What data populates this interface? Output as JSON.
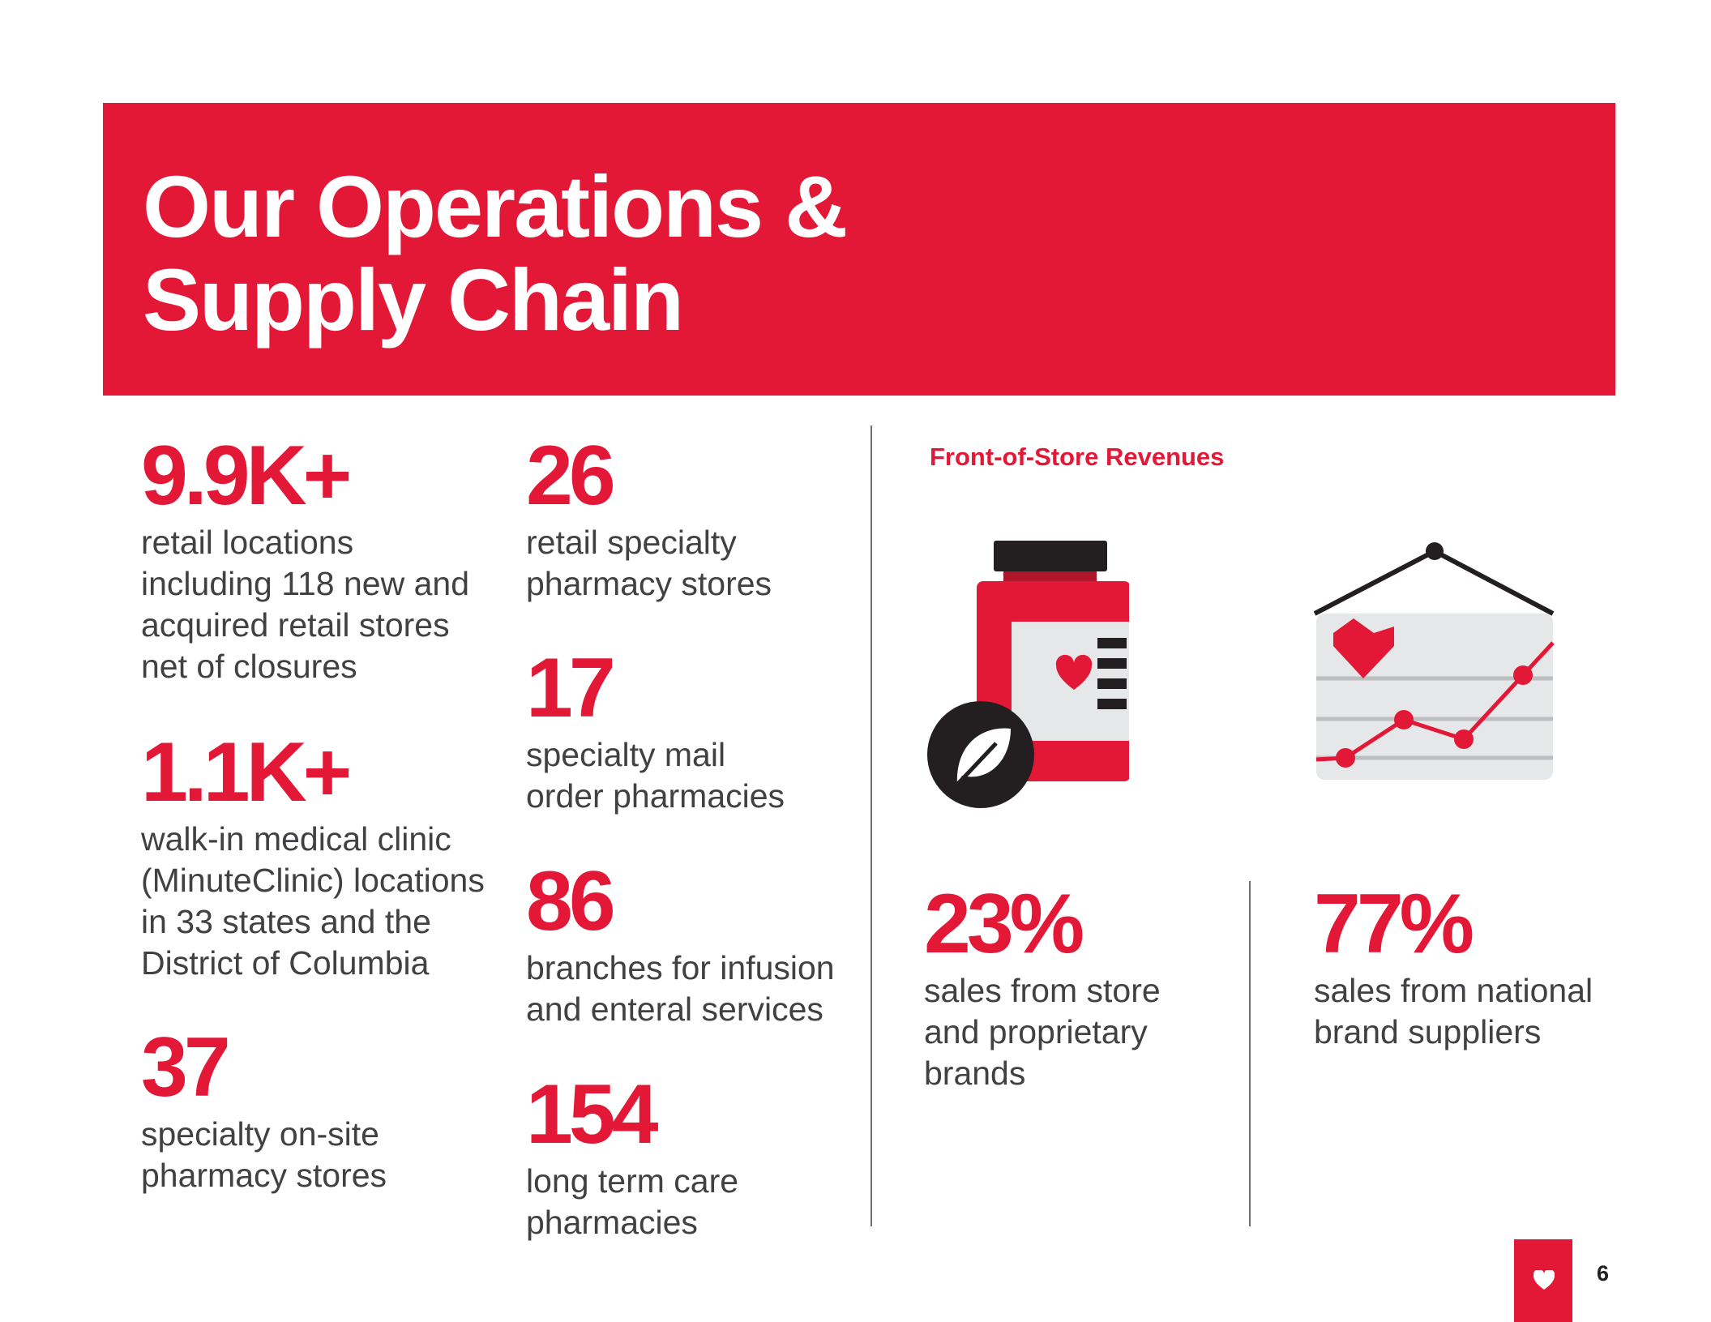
{
  "header": {
    "title_line1": "Our Operations &",
    "title_line2": "Supply Chain"
  },
  "stats_left": [
    {
      "number": "9.9K+",
      "description": "retail locations\nincluding 118 new and\nacquired retail stores\nnet of closures"
    },
    {
      "number": "1.1K+",
      "description": "walk-in medical clinic\n(MinuteClinic) locations\nin 33 states and the\nDistrict of Columbia"
    },
    {
      "number": "37",
      "description": "specialty on-site\npharmacy stores"
    }
  ],
  "stats_middle": [
    {
      "number": "26",
      "description": "retail specialty\npharmacy stores"
    },
    {
      "number": "17",
      "description": "specialty mail\norder pharmacies"
    },
    {
      "number": "86",
      "description": "branches for infusion\nand enteral services"
    },
    {
      "number": "154",
      "description": "long term care\npharmacies"
    }
  ],
  "front_of_store": {
    "title": "Front-of-Store Revenues",
    "icons": [
      "pill-bottle-leaf-icon",
      "hanging-sign-chart-icon"
    ],
    "stats": [
      {
        "number": "23%",
        "description": "sales from store\nand proprietary\nbrands"
      },
      {
        "number": "77%",
        "description": "sales from national\nbrand suppliers"
      }
    ]
  },
  "footer": {
    "page_number": "6",
    "icon": "heart-icon"
  },
  "colors": {
    "brand_red": "#e31837",
    "text_gray": "#414042",
    "divider_gray": "#6d6e71",
    "icon_light_gray": "#e6e7e8",
    "icon_dark": "#231f20"
  }
}
